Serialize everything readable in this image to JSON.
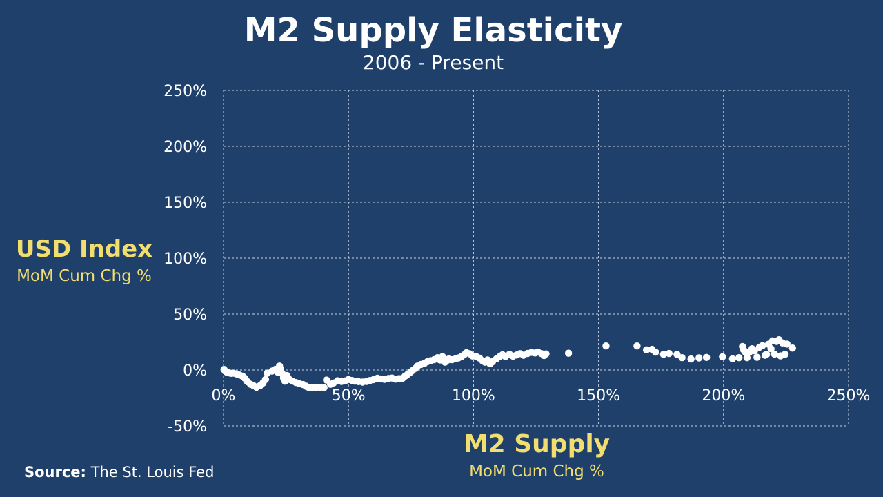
{
  "header": {
    "title": "M2 Supply Elasticity",
    "subtitle": "2006 - Present"
  },
  "y_axis": {
    "label": "USD Index",
    "sublabel": "MoM Cum Chg %"
  },
  "x_axis": {
    "label": "M2 Supply",
    "sublabel": "MoM Cum Chg %"
  },
  "source": {
    "prefix": "Source:",
    "text": "The St. Louis Fed"
  },
  "colors": {
    "background": "#1f406a",
    "points": "#ffffff",
    "accent_labels": "#f2de6f",
    "grid": "#c8d2e0"
  },
  "chart_data": {
    "type": "scatter",
    "title": "M2 Supply Elasticity",
    "subtitle": "2006 - Present",
    "xlabel": "M2 Supply",
    "ylabel": "USD Index",
    "xlim": [
      0,
      250
    ],
    "ylim": [
      -50,
      250
    ],
    "x_ticks": [
      "0%",
      "50%",
      "100%",
      "150%",
      "200%",
      "250%"
    ],
    "y_ticks": [
      "250%",
      "200%",
      "150%",
      "100%",
      "50%",
      "0%",
      "-50%"
    ],
    "grid": true,
    "points": [
      [
        0.2,
        0.5
      ],
      [
        0.6,
        -0.8
      ],
      [
        1.2,
        -1.8
      ],
      [
        2.0,
        -2.5
      ],
      [
        3.0,
        -3.0
      ],
      [
        4.0,
        -2.8
      ],
      [
        5.2,
        -3.6
      ],
      [
        6.4,
        -4.5
      ],
      [
        7.6,
        -5.5
      ],
      [
        8.6,
        -7.5
      ],
      [
        9.6,
        -10.5
      ],
      [
        10.8,
        -12.8
      ],
      [
        12.0,
        -14.0
      ],
      [
        13.2,
        -15.4
      ],
      [
        14.6,
        -14.0
      ],
      [
        15.8,
        -11.6
      ],
      [
        16.8,
        -8.5
      ],
      [
        17.5,
        -2.8
      ],
      [
        19.4,
        -1.0
      ],
      [
        20.8,
        0.6
      ],
      [
        21.6,
        -1.8
      ],
      [
        22.4,
        3.5
      ],
      [
        22.8,
        1.0
      ],
      [
        23.4,
        -3.0
      ],
      [
        24.0,
        -7.0
      ],
      [
        24.6,
        -10.0
      ],
      [
        25.4,
        -5.0
      ],
      [
        26.4,
        -8.5
      ],
      [
        27.6,
        -10.0
      ],
      [
        29.0,
        -11.2
      ],
      [
        30.4,
        -12.3
      ],
      [
        31.8,
        -13.0
      ],
      [
        33.0,
        -14.5
      ],
      [
        34.2,
        -15.8
      ],
      [
        35.6,
        -15.8
      ],
      [
        37.2,
        -15.5
      ],
      [
        38.6,
        -15.6
      ],
      [
        40.2,
        -15.8
      ],
      [
        41.2,
        -9.0
      ],
      [
        42.8,
        -12.8
      ],
      [
        44.0,
        -11.6
      ],
      [
        45.6,
        -9.6
      ],
      [
        47.2,
        -10.2
      ],
      [
        48.6,
        -9.8
      ],
      [
        50.0,
        -8.5
      ],
      [
        51.4,
        -9.4
      ],
      [
        52.6,
        -10.0
      ],
      [
        54.0,
        -10.4
      ],
      [
        55.6,
        -10.8
      ],
      [
        57.2,
        -10.2
      ],
      [
        58.6,
        -9.4
      ],
      [
        60.0,
        -8.6
      ],
      [
        61.6,
        -7.4
      ],
      [
        63.0,
        -8.0
      ],
      [
        64.4,
        -8.4
      ],
      [
        66.0,
        -7.6
      ],
      [
        67.4,
        -7.2
      ],
      [
        68.8,
        -8.2
      ],
      [
        70.2,
        -7.8
      ],
      [
        71.6,
        -7.4
      ],
      [
        72.6,
        -5.5
      ],
      [
        73.6,
        -4.0
      ],
      [
        74.8,
        -2.0
      ],
      [
        75.6,
        -0.5
      ],
      [
        76.8,
        1.5
      ],
      [
        77.6,
        3.5
      ],
      [
        79.0,
        5.0
      ],
      [
        80.4,
        6.0
      ],
      [
        81.6,
        7.5
      ],
      [
        82.8,
        8.3
      ],
      [
        84.2,
        9.2
      ],
      [
        85.6,
        11.0
      ],
      [
        86.6,
        9.0
      ],
      [
        87.6,
        12.0
      ],
      [
        88.6,
        7.0
      ],
      [
        89.4,
        8.5
      ],
      [
        90.2,
        10.0
      ],
      [
        91.4,
        9.2
      ],
      [
        92.8,
        10.0
      ],
      [
        94.0,
        10.8
      ],
      [
        95.2,
        12.0
      ],
      [
        96.2,
        13.5
      ],
      [
        97.2,
        15.5
      ],
      [
        98.4,
        14.5
      ],
      [
        99.6,
        12.5
      ],
      [
        101.2,
        11.8
      ],
      [
        102.4,
        10.6
      ],
      [
        103.6,
        8.3
      ],
      [
        104.6,
        7.0
      ],
      [
        105.6,
        9.0
      ],
      [
        106.6,
        5.6
      ],
      [
        107.6,
        7.4
      ],
      [
        109.2,
        10.0
      ],
      [
        110.4,
        11.8
      ],
      [
        111.6,
        13.6
      ],
      [
        112.8,
        12.0
      ],
      [
        114.4,
        14.0
      ],
      [
        115.8,
        12.4
      ],
      [
        117.2,
        13.4
      ],
      [
        118.6,
        14.6
      ],
      [
        120.0,
        13.2
      ],
      [
        121.6,
        14.8
      ],
      [
        123.2,
        15.8
      ],
      [
        124.6,
        15.2
      ],
      [
        125.8,
        16.0
      ],
      [
        127.2,
        14.6
      ],
      [
        128.2,
        13.0
      ],
      [
        129.0,
        14.4
      ],
      [
        138.0,
        15.0
      ],
      [
        153.0,
        21.5
      ],
      [
        165.4,
        21.5
      ],
      [
        169.2,
        18.0
      ],
      [
        171.4,
        18.5
      ],
      [
        172.8,
        16.0
      ],
      [
        176.0,
        14.0
      ],
      [
        178.2,
        14.8
      ],
      [
        181.4,
        14.0
      ],
      [
        183.4,
        11.0
      ],
      [
        187.0,
        9.8
      ],
      [
        190.2,
        10.8
      ],
      [
        193.2,
        11.2
      ],
      [
        199.6,
        11.8
      ],
      [
        203.6,
        10.0
      ],
      [
        206.2,
        11.0
      ],
      [
        207.6,
        21.0
      ],
      [
        208.0,
        18.2
      ],
      [
        208.8,
        15.8
      ],
      [
        209.4,
        11.0
      ],
      [
        210.4,
        16.0
      ],
      [
        211.4,
        19.0
      ],
      [
        212.4,
        17.2
      ],
      [
        213.4,
        11.4
      ],
      [
        214.4,
        20.4
      ],
      [
        215.6,
        21.8
      ],
      [
        216.6,
        13.2
      ],
      [
        217.2,
        14.0
      ],
      [
        218.0,
        23.0
      ],
      [
        219.0,
        19.0
      ],
      [
        219.6,
        26.0
      ],
      [
        220.4,
        14.2
      ],
      [
        221.2,
        25.6
      ],
      [
        222.2,
        27.0
      ],
      [
        222.8,
        12.6
      ],
      [
        223.6,
        24.2
      ],
      [
        224.6,
        14.0
      ],
      [
        225.4,
        23.2
      ],
      [
        227.6,
        19.6
      ]
    ]
  }
}
